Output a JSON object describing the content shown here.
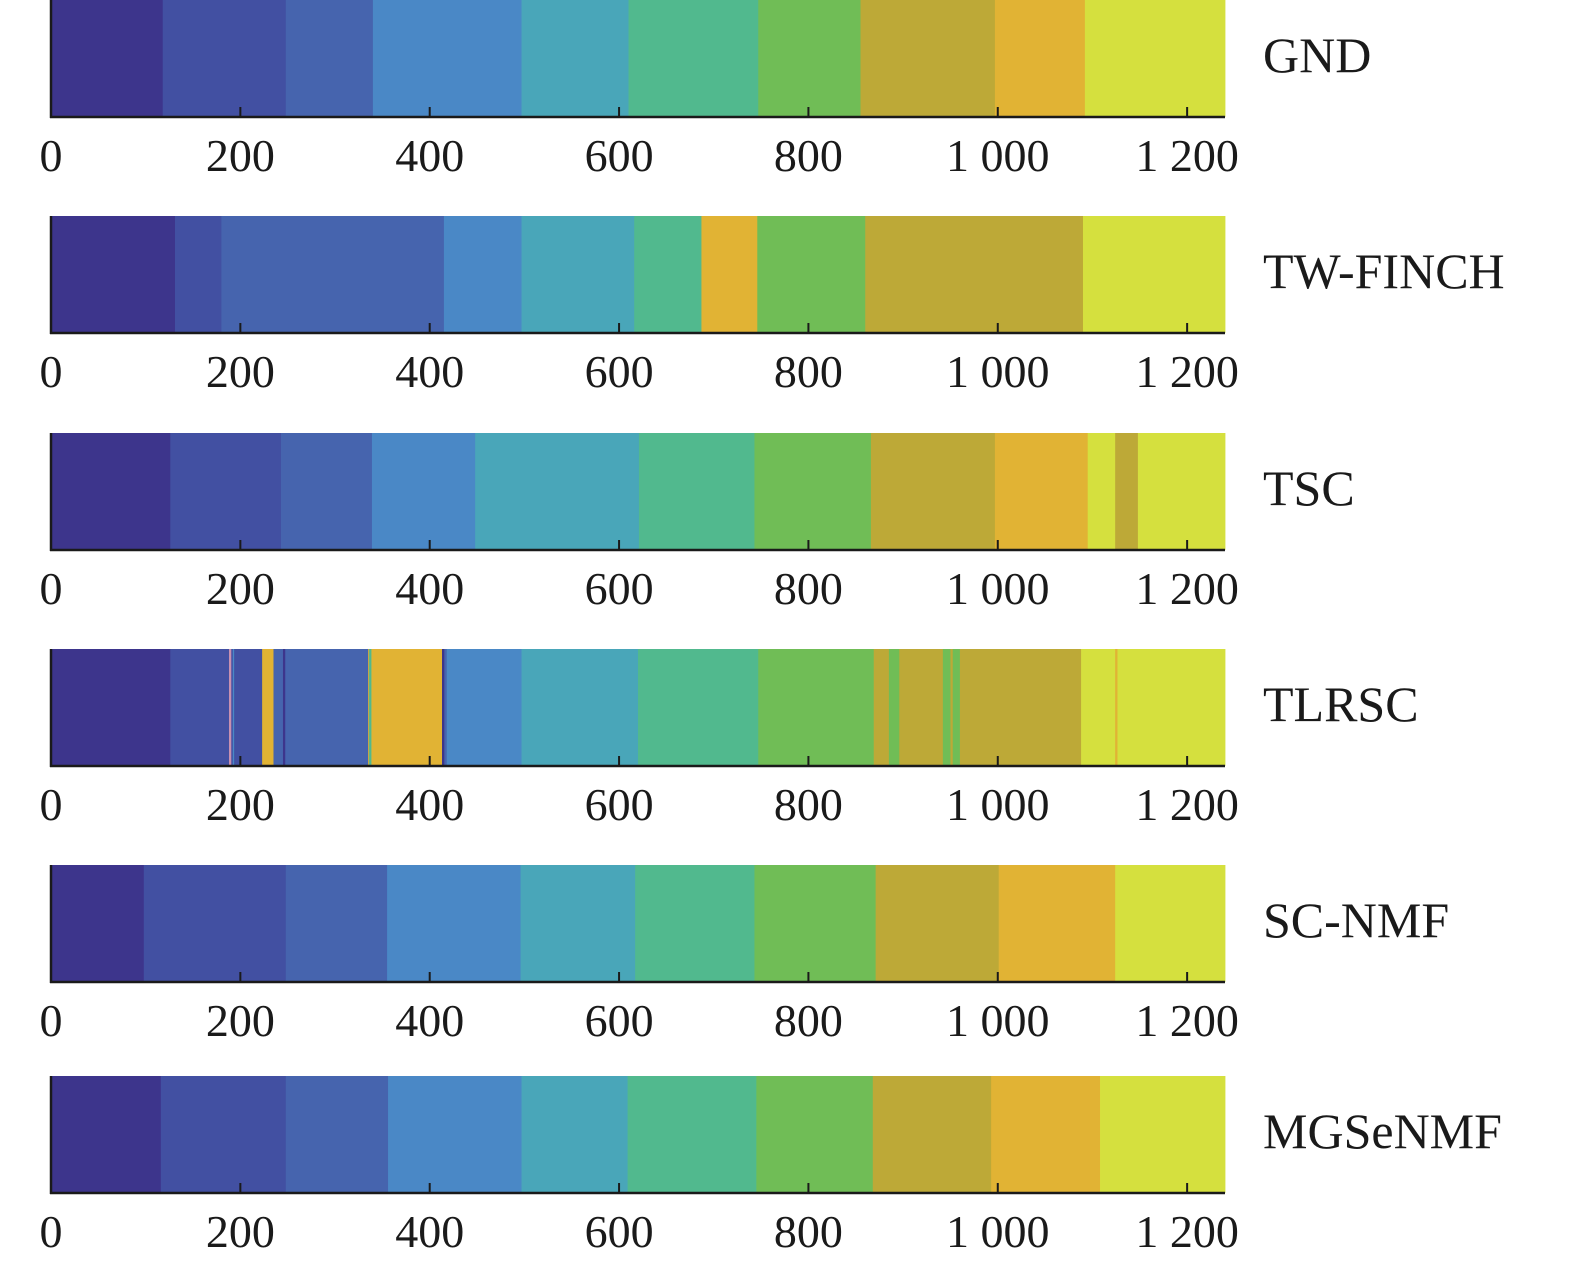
{
  "chart_data": {
    "type": "segmentation-bars",
    "xlim": [
      0,
      1240
    ],
    "ticks": [
      0,
      200,
      400,
      600,
      800,
      1000,
      1200
    ],
    "tick_labels": [
      "0",
      "200",
      "400",
      "600",
      "800",
      "1 000",
      "1 200"
    ],
    "palette": {
      "c1": "#3d358c",
      "c2": "#4250a2",
      "c3": "#4664ae",
      "c4": "#4a88c6",
      "c5": "#49a6b9",
      "c6": "#51b98e",
      "c7": "#70bd56",
      "c8": "#bda937",
      "c9": "#e1b334",
      "c10": "#d5e03e",
      "thin_line": "#c890b0"
    },
    "rows": [
      {
        "name": "GND",
        "segments": [
          {
            "start": 0,
            "end": 118,
            "color": "c1"
          },
          {
            "start": 118,
            "end": 248,
            "color": "c2"
          },
          {
            "start": 248,
            "end": 340,
            "color": "c3"
          },
          {
            "start": 340,
            "end": 497,
            "color": "c4"
          },
          {
            "start": 497,
            "end": 610,
            "color": "c5"
          },
          {
            "start": 610,
            "end": 747,
            "color": "c6"
          },
          {
            "start": 747,
            "end": 855,
            "color": "c7"
          },
          {
            "start": 855,
            "end": 997,
            "color": "c8"
          },
          {
            "start": 997,
            "end": 1092,
            "color": "c9"
          },
          {
            "start": 1092,
            "end": 1240,
            "color": "c10"
          }
        ]
      },
      {
        "name": "TW-FINCH",
        "segments": [
          {
            "start": 0,
            "end": 131,
            "color": "c1"
          },
          {
            "start": 131,
            "end": 180,
            "color": "c2"
          },
          {
            "start": 180,
            "end": 415,
            "color": "c3"
          },
          {
            "start": 415,
            "end": 497,
            "color": "c4"
          },
          {
            "start": 497,
            "end": 616,
            "color": "c5"
          },
          {
            "start": 616,
            "end": 687,
            "color": "c6"
          },
          {
            "start": 687,
            "end": 746,
            "color": "c9"
          },
          {
            "start": 746,
            "end": 860,
            "color": "c7"
          },
          {
            "start": 860,
            "end": 1090,
            "color": "c8"
          },
          {
            "start": 1090,
            "end": 1240,
            "color": "c10"
          }
        ]
      },
      {
        "name": "TSC",
        "segments": [
          {
            "start": 0,
            "end": 126,
            "color": "c1"
          },
          {
            "start": 126,
            "end": 243,
            "color": "c2"
          },
          {
            "start": 243,
            "end": 339,
            "color": "c3"
          },
          {
            "start": 339,
            "end": 448,
            "color": "c4"
          },
          {
            "start": 448,
            "end": 621,
            "color": "c5"
          },
          {
            "start": 621,
            "end": 743,
            "color": "c6"
          },
          {
            "start": 743,
            "end": 866,
            "color": "c7"
          },
          {
            "start": 866,
            "end": 997,
            "color": "c8"
          },
          {
            "start": 997,
            "end": 1095,
            "color": "c9"
          },
          {
            "start": 1095,
            "end": 1124,
            "color": "c10"
          },
          {
            "start": 1124,
            "end": 1148,
            "color": "c8"
          },
          {
            "start": 1148,
            "end": 1240,
            "color": "c10"
          }
        ]
      },
      {
        "name": "TLRSC",
        "segments": [
          {
            "start": 0,
            "end": 126,
            "color": "c1"
          },
          {
            "start": 126,
            "end": 223,
            "color": "c2"
          },
          {
            "start": 223,
            "end": 235,
            "color": "c9"
          },
          {
            "start": 235,
            "end": 335,
            "color": "c3"
          },
          {
            "start": 335,
            "end": 413,
            "color": "c9"
          },
          {
            "start": 413,
            "end": 418,
            "color": "c3"
          },
          {
            "start": 418,
            "end": 497,
            "color": "c4"
          },
          {
            "start": 497,
            "end": 622,
            "color": "c5"
          },
          {
            "start": 622,
            "end": 747,
            "color": "c6"
          },
          {
            "start": 747,
            "end": 869,
            "color": "c7"
          },
          {
            "start": 869,
            "end": 885,
            "color": "c8"
          },
          {
            "start": 885,
            "end": 896,
            "color": "c7"
          },
          {
            "start": 896,
            "end": 942,
            "color": "c8"
          },
          {
            "start": 942,
            "end": 960,
            "color": "c7"
          },
          {
            "start": 960,
            "end": 1088,
            "color": "c8"
          },
          {
            "start": 1088,
            "end": 1240,
            "color": "c10"
          },
          {
            "start": 188,
            "end": 190,
            "color": "thin_line"
          },
          {
            "start": 192,
            "end": 193,
            "color": "c4"
          },
          {
            "start": 245,
            "end": 247,
            "color": "c1"
          },
          {
            "start": 336,
            "end": 338,
            "color": "c6"
          },
          {
            "start": 413,
            "end": 415,
            "color": "c1"
          },
          {
            "start": 620,
            "end": 622,
            "color": "c6"
          },
          {
            "start": 950,
            "end": 952,
            "color": "c8"
          },
          {
            "start": 1124,
            "end": 1126,
            "color": "c9"
          }
        ]
      },
      {
        "name": "SC-NMF",
        "segments": [
          {
            "start": 0,
            "end": 98,
            "color": "c1"
          },
          {
            "start": 98,
            "end": 248,
            "color": "c2"
          },
          {
            "start": 248,
            "end": 355,
            "color": "c3"
          },
          {
            "start": 355,
            "end": 496,
            "color": "c4"
          },
          {
            "start": 496,
            "end": 617,
            "color": "c5"
          },
          {
            "start": 617,
            "end": 743,
            "color": "c6"
          },
          {
            "start": 743,
            "end": 871,
            "color": "c7"
          },
          {
            "start": 871,
            "end": 1001,
            "color": "c8"
          },
          {
            "start": 1001,
            "end": 1124,
            "color": "c9"
          },
          {
            "start": 1124,
            "end": 1240,
            "color": "c10"
          }
        ]
      },
      {
        "name": "MGSeNMF",
        "segments": [
          {
            "start": 0,
            "end": 116,
            "color": "c1"
          },
          {
            "start": 116,
            "end": 248,
            "color": "c2"
          },
          {
            "start": 248,
            "end": 356,
            "color": "c3"
          },
          {
            "start": 356,
            "end": 497,
            "color": "c4"
          },
          {
            "start": 497,
            "end": 609,
            "color": "c5"
          },
          {
            "start": 609,
            "end": 745,
            "color": "c6"
          },
          {
            "start": 745,
            "end": 868,
            "color": "c7"
          },
          {
            "start": 868,
            "end": 993,
            "color": "c8"
          },
          {
            "start": 993,
            "end": 1108,
            "color": "c9"
          },
          {
            "start": 1108,
            "end": 1240,
            "color": "c10"
          }
        ]
      }
    ]
  }
}
